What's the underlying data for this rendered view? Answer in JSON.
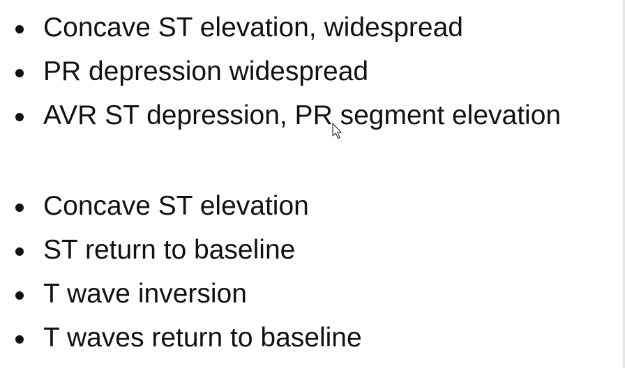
{
  "slide": {
    "group_1": [
      "Concave ST elevation, widespread",
      "PR depression widespread",
      "AVR ST depression, PR segment elevation"
    ],
    "group_2": [
      "Concave ST elevation",
      "ST return to baseline",
      "T wave inversion",
      "T waves return to baseline"
    ]
  },
  "cursor": {
    "icon": "mouse-pointer-icon"
  },
  "colors": {
    "text": "#111111",
    "background": "#ffffff"
  }
}
